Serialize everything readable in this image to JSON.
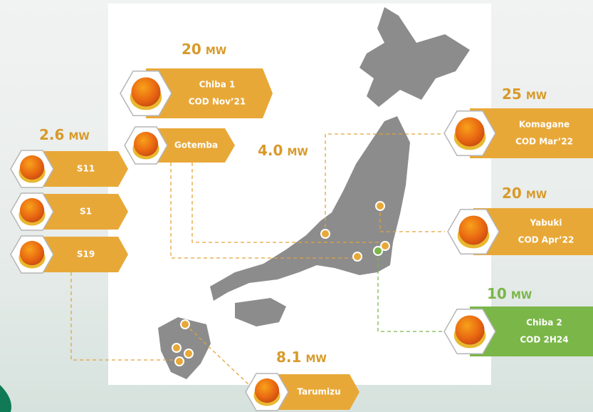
{
  "capacities": [
    {
      "value": "20",
      "unit": "MW"
    },
    {
      "value": "4.0",
      "unit": "MW"
    },
    {
      "value": "2.6",
      "unit": "MW"
    },
    {
      "value": "25",
      "unit": "MW"
    },
    {
      "value": "20",
      "unit": "MW"
    },
    {
      "value": "10",
      "unit": "MW"
    },
    {
      "value": "8.1",
      "unit": "MW"
    }
  ],
  "boxes": [
    {
      "lines": [
        "Chiba 1",
        "COD Nov’21"
      ]
    },
    {
      "lines": [
        "Gotemba"
      ]
    },
    {
      "lines": [
        "S11"
      ]
    },
    {
      "lines": [
        "S1"
      ]
    },
    {
      "lines": [
        "S19"
      ]
    },
    {
      "lines": [
        "Komagane",
        "COD Mar’22"
      ]
    },
    {
      "lines": [
        "Yabuki",
        "COD Apr’22"
      ]
    },
    {
      "lines": [
        "Chiba 2",
        "COD 2H24"
      ]
    },
    {
      "lines": [
        "Tarumizu"
      ]
    }
  ]
}
